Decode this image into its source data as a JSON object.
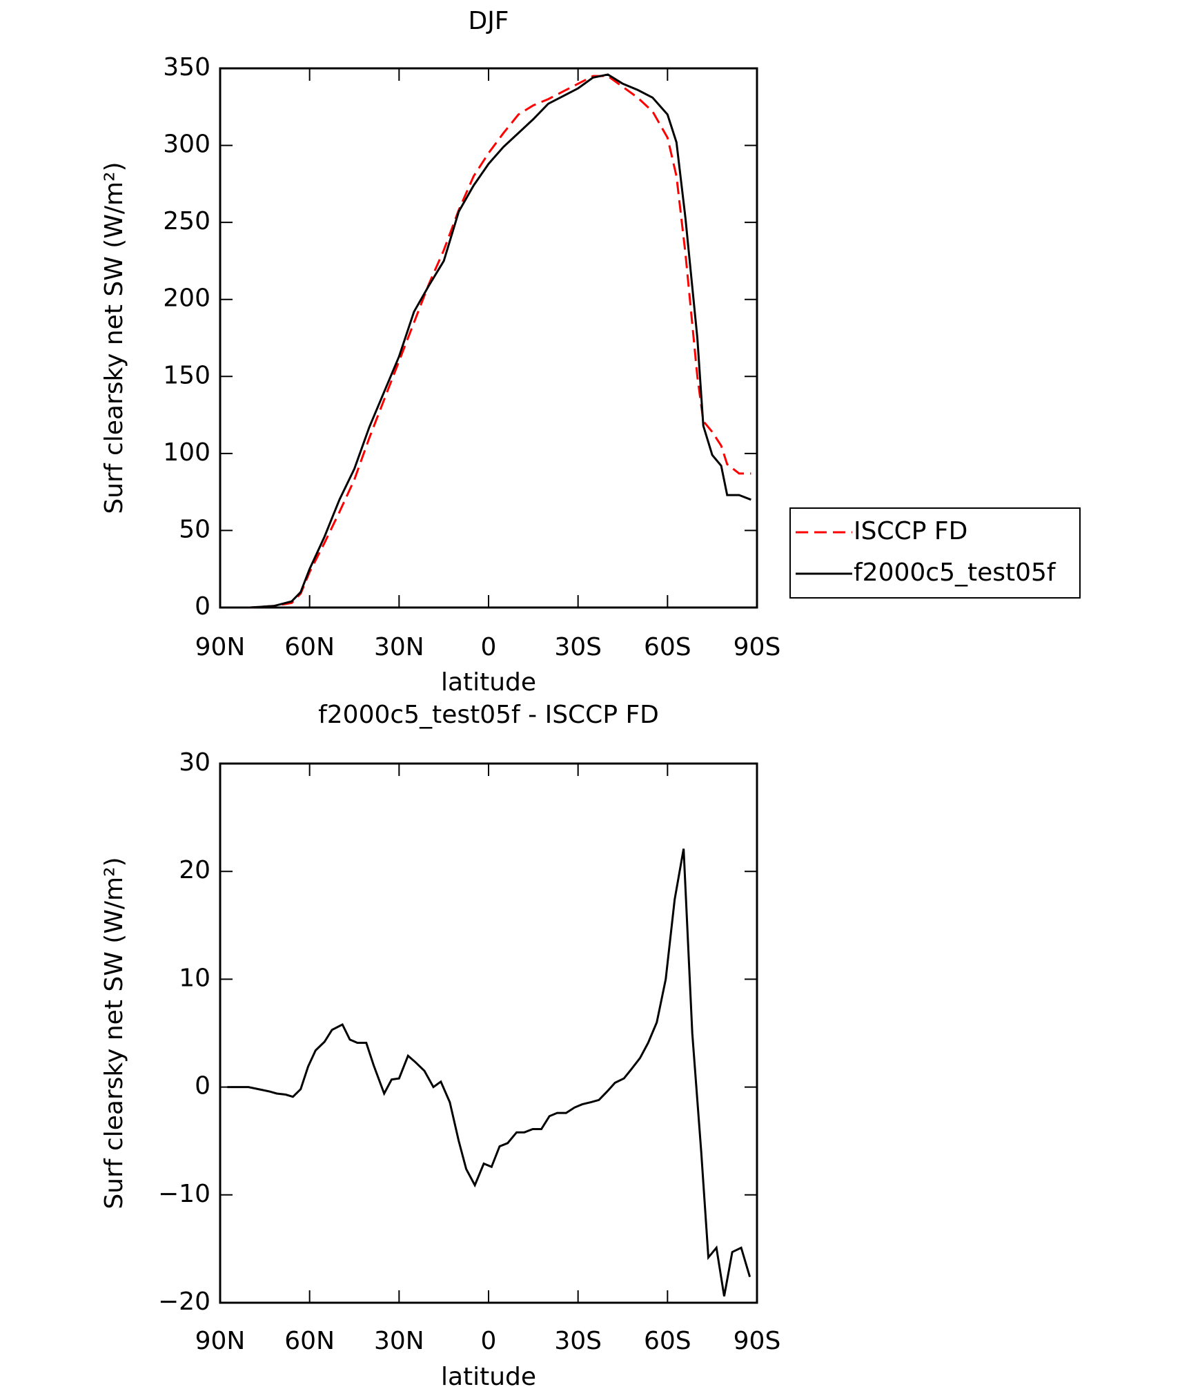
{
  "chart_data": [
    {
      "type": "line",
      "title": "DJF",
      "x_label": "latitude",
      "y_label": "Surf clearsky net SW (W/m²)",
      "xlim": [
        90,
        -90
      ],
      "xticks": [
        {
          "value": 90,
          "label": "90N"
        },
        {
          "value": 60,
          "label": "60N"
        },
        {
          "value": 30,
          "label": "30N"
        },
        0,
        {
          "value": -30,
          "label": "30S"
        },
        {
          "value": -60,
          "label": "60S"
        },
        {
          "value": -90,
          "label": "90S"
        }
      ],
      "ylim": [
        0,
        350
      ],
      "yticks": [
        0,
        50,
        100,
        150,
        200,
        250,
        300,
        350
      ],
      "legend": "right",
      "x": [
        88,
        80,
        72,
        66,
        63,
        60,
        55,
        50,
        45,
        40,
        35,
        30,
        25,
        20,
        15,
        10,
        5,
        0,
        -5,
        -10,
        -15,
        -20,
        -25,
        -30,
        -35,
        -40,
        -45,
        -50,
        -55,
        -60,
        -63,
        -66,
        -70,
        -72,
        -75,
        -78,
        -80,
        -84,
        -88
      ],
      "series": [
        {
          "name": "ISCCP FD",
          "color": "#ff0000",
          "dash": true,
          "values": [
            0,
            0,
            1,
            3,
            9,
            23,
            42,
            62,
            83,
            110,
            135,
            160,
            185,
            210,
            232,
            258,
            280,
            295,
            308,
            320,
            326,
            330,
            335,
            340,
            345,
            345,
            338,
            331,
            322,
            305,
            280,
            230,
            150,
            121,
            114,
            105,
            93,
            87,
            87
          ]
        },
        {
          "name": "f2000c5_test05f",
          "color": "#000000",
          "dash": false,
          "values": [
            0,
            0,
            1,
            4,
            10,
            25,
            46,
            70,
            90,
            117,
            140,
            163,
            192,
            209,
            225,
            257,
            274,
            288,
            299,
            308,
            317,
            327,
            332,
            337,
            344,
            346,
            340,
            336,
            331,
            320,
            302,
            253,
            175,
            118,
            99,
            92,
            73,
            73,
            70
          ]
        }
      ]
    },
    {
      "type": "line",
      "title": "f2000c5_test05f - ISCCP FD",
      "x_label": "latitude",
      "y_label": "Surf clearsky net SW (W/m²)",
      "xlim": [
        90,
        -90
      ],
      "xticks": [
        {
          "value": 90,
          "label": "90N"
        },
        {
          "value": 60,
          "label": "60N"
        },
        {
          "value": 30,
          "label": "30N"
        },
        0,
        {
          "value": -30,
          "label": "30S"
        },
        {
          "value": -60,
          "label": "60S"
        },
        {
          "value": -90,
          "label": "90S"
        }
      ],
      "ylim": [
        -20,
        30
      ],
      "yticks": [
        {
          "value": -20,
          "label": "−20"
        },
        {
          "value": -10,
          "label": "−10"
        },
        0,
        10,
        20,
        30
      ],
      "x": [
        87.6,
        80.5,
        73.6,
        71,
        68,
        65.6,
        63,
        60.5,
        58,
        55,
        52.5,
        49,
        46.5,
        44,
        41,
        38.5,
        35,
        32.5,
        30,
        27,
        24.5,
        21.5,
        18.5,
        16,
        13,
        10,
        7.5,
        4.6,
        1.6,
        -1,
        -3.7,
        -6.4,
        -9.4,
        -12,
        -14.8,
        -17.7,
        -20.4,
        -23,
        -26,
        -28.8,
        -31.4,
        -34.4,
        -37,
        -39.8,
        -42.4,
        -45.4,
        -48,
        -50.8,
        -53.5,
        -56.4,
        -59.4,
        -62.4,
        -65.4,
        -68.3,
        -71.3,
        -73.7,
        -76.4,
        -79,
        -81.7,
        -84.7,
        -87.6
      ],
      "series": [
        {
          "color": "#000000",
          "dash": false,
          "values": [
            0,
            0,
            -0.4,
            -0.6,
            -0.7,
            -0.9,
            -0.2,
            1.9,
            3.4,
            4.2,
            5.3,
            5.8,
            4.4,
            4.1,
            4.1,
            2,
            -0.6,
            0.7,
            0.8,
            2.9,
            2.3,
            1.5,
            0,
            0.5,
            -1.4,
            -5,
            -7.6,
            -9.1,
            -7.1,
            -7.4,
            -5.5,
            -5.2,
            -4.2,
            -4.2,
            -3.9,
            -3.9,
            -2.7,
            -2.4,
            -2.4,
            -1.9,
            -1.6,
            -1.4,
            -1.2,
            -0.4,
            0.4,
            0.8,
            1.7,
            2.7,
            4.1,
            6,
            10,
            17.4,
            22.1,
            5,
            -6,
            -15.8,
            -14.9,
            -19.4,
            -15.3,
            -14.9,
            -17.6
          ]
        }
      ]
    }
  ]
}
